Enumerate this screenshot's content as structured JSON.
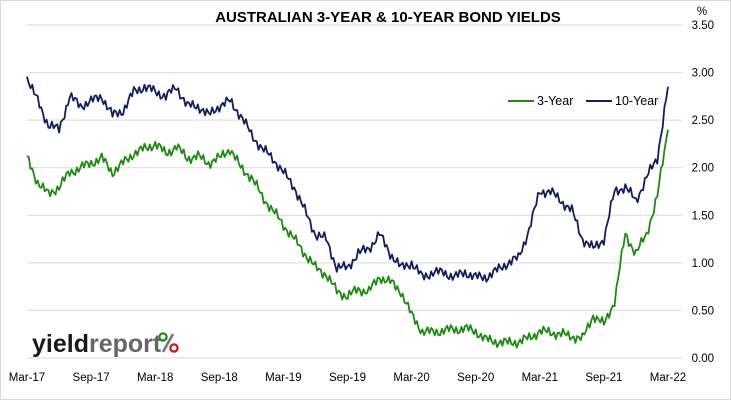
{
  "chart_data": {
    "type": "line",
    "title": "AUSTRALIAN 3-YEAR & 10-YEAR BOND YIELDS",
    "ylabel": "%",
    "ylim": [
      0,
      3.5
    ],
    "y_ticks": [
      "0.00",
      "0.50",
      "1.00",
      "1.50",
      "2.00",
      "2.50",
      "3.00",
      "3.50"
    ],
    "x_ticks": [
      "Mar-17",
      "Sep-17",
      "Mar-18",
      "Sep-18",
      "Mar-19",
      "Sep-19",
      "Mar-20",
      "Sep-20",
      "Mar-21",
      "Sep-21",
      "Mar-22"
    ],
    "grid": "horizontal",
    "legend_position": "top-right",
    "series": [
      {
        "name": "3-Year",
        "color": "#1f8a13",
        "x": [
          "Mar-17",
          "Apr-17",
          "May-17",
          "Jun-17",
          "Jul-17",
          "Aug-17",
          "Sep-17",
          "Oct-17",
          "Nov-17",
          "Dec-17",
          "Jan-18",
          "Feb-18",
          "Mar-18",
          "Apr-18",
          "May-18",
          "Jun-18",
          "Jul-18",
          "Aug-18",
          "Sep-18",
          "Oct-18",
          "Nov-18",
          "Dec-18",
          "Jan-19",
          "Feb-19",
          "Mar-19",
          "Apr-19",
          "May-19",
          "Jun-19",
          "Jul-19",
          "Aug-19",
          "Sep-19",
          "Oct-19",
          "Nov-19",
          "Dec-19",
          "Jan-20",
          "Feb-20",
          "Mar-20",
          "Apr-20",
          "May-20",
          "Jun-20",
          "Jul-20",
          "Aug-20",
          "Sep-20",
          "Oct-20",
          "Nov-20",
          "Dec-20",
          "Jan-21",
          "Feb-21",
          "Mar-21",
          "Apr-21",
          "May-21",
          "Jun-21",
          "Jul-21",
          "Aug-21",
          "Sep-21",
          "Oct-21",
          "Nov-21",
          "Dec-21",
          "Jan-22",
          "Feb-22",
          "Mar-22"
        ],
        "values": [
          2.1,
          1.85,
          1.72,
          1.8,
          1.95,
          2.0,
          2.05,
          2.1,
          1.95,
          2.05,
          2.15,
          2.2,
          2.25,
          2.15,
          2.22,
          2.1,
          2.12,
          2.05,
          2.1,
          2.2,
          2.0,
          1.9,
          1.7,
          1.55,
          1.4,
          1.25,
          1.1,
          0.95,
          0.88,
          0.7,
          0.65,
          0.72,
          0.7,
          0.85,
          0.8,
          0.7,
          0.45,
          0.28,
          0.27,
          0.29,
          0.3,
          0.31,
          0.28,
          0.19,
          0.17,
          0.16,
          0.17,
          0.21,
          0.28,
          0.27,
          0.25,
          0.23,
          0.2,
          0.45,
          0.35,
          0.6,
          1.3,
          1.1,
          1.3,
          1.7,
          2.4
        ]
      },
      {
        "name": "10-Year",
        "color": "#0f1f5c",
        "x": [
          "Mar-17",
          "Apr-17",
          "May-17",
          "Jun-17",
          "Jul-17",
          "Aug-17",
          "Sep-17",
          "Oct-17",
          "Nov-17",
          "Dec-17",
          "Jan-18",
          "Feb-18",
          "Mar-18",
          "Apr-18",
          "May-18",
          "Jun-18",
          "Jul-18",
          "Aug-18",
          "Sep-18",
          "Oct-18",
          "Nov-18",
          "Dec-18",
          "Jan-19",
          "Feb-19",
          "Mar-19",
          "Apr-19",
          "May-19",
          "Jun-19",
          "Jul-19",
          "Aug-19",
          "Sep-19",
          "Oct-19",
          "Nov-19",
          "Dec-19",
          "Jan-20",
          "Feb-20",
          "Mar-20",
          "Apr-20",
          "May-20",
          "Jun-20",
          "Jul-20",
          "Aug-20",
          "Sep-20",
          "Oct-20",
          "Nov-20",
          "Dec-20",
          "Jan-21",
          "Feb-21",
          "Mar-21",
          "Apr-21",
          "May-21",
          "Jun-21",
          "Jul-21",
          "Aug-21",
          "Sep-21",
          "Oct-21",
          "Nov-21",
          "Dec-21",
          "Jan-22",
          "Feb-22",
          "Mar-22"
        ],
        "values": [
          2.95,
          2.7,
          2.45,
          2.4,
          2.75,
          2.65,
          2.7,
          2.75,
          2.55,
          2.6,
          2.8,
          2.85,
          2.8,
          2.75,
          2.85,
          2.65,
          2.65,
          2.55,
          2.65,
          2.7,
          2.55,
          2.35,
          2.2,
          2.1,
          1.95,
          1.8,
          1.55,
          1.3,
          1.25,
          0.95,
          0.95,
          1.1,
          1.15,
          1.3,
          1.1,
          0.95,
          1.0,
          0.85,
          0.9,
          0.9,
          0.85,
          0.9,
          0.85,
          0.85,
          0.92,
          1.0,
          1.05,
          1.35,
          1.75,
          1.75,
          1.65,
          1.55,
          1.25,
          1.15,
          1.25,
          1.75,
          1.8,
          1.65,
          1.9,
          2.1,
          2.85
        ]
      }
    ],
    "watermark": {
      "part1": "yield",
      "part2": "report",
      "symbol": "%"
    }
  }
}
